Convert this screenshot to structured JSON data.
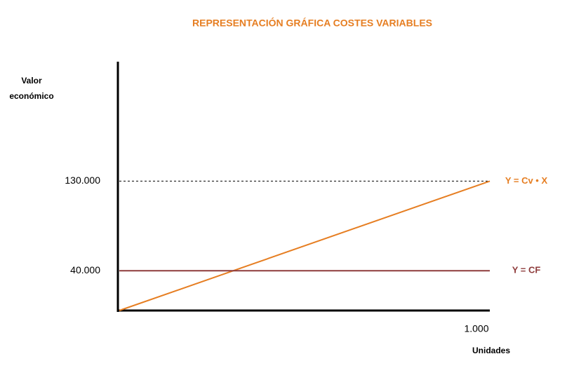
{
  "chart_data": {
    "type": "line",
    "title": "REPRESENTACIÓN GRÁFICA COSTES VARIABLES",
    "y_label": "Valor económico",
    "x_label": "Unidades",
    "x": [
      0,
      1000
    ],
    "series": [
      {
        "name": "Y = Cv • X",
        "color": "#e67e22",
        "values": [
          0,
          130000
        ]
      },
      {
        "name": "Y = CF",
        "color": "#8e3b3b",
        "values": [
          40000,
          40000
        ]
      }
    ],
    "xlim": [
      0,
      1000
    ],
    "xticks": [
      {
        "value": 1000,
        "label": "1.000"
      }
    ],
    "ylim": [
      0,
      250000
    ],
    "yticks": [
      {
        "value": 40000,
        "label": "40.000"
      },
      {
        "value": 130000,
        "label": "130.000"
      }
    ],
    "grid": true,
    "grid_style": "dashed"
  }
}
